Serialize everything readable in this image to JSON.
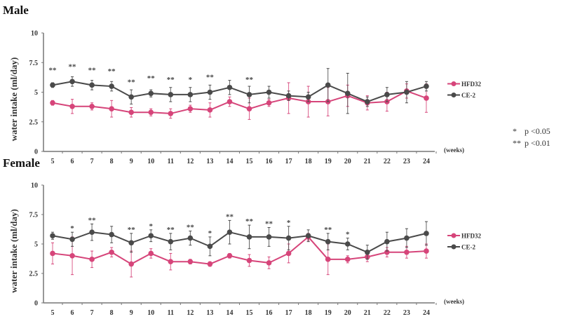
{
  "chart_data": [
    {
      "type": "line",
      "title": "Male",
      "xlabel": "(weeks)",
      "ylabel": "water intake (ml/day)",
      "ylim": [
        0,
        10
      ],
      "yticks": [
        "0",
        "2.5",
        "5",
        "7.5",
        "10"
      ],
      "x": [
        5,
        6,
        7,
        8,
        9,
        10,
        11,
        12,
        13,
        14,
        15,
        16,
        17,
        18,
        19,
        20,
        21,
        22,
        23,
        24
      ],
      "series": [
        {
          "name": "HFD32",
          "color": "#d6457a",
          "values": [
            4.1,
            3.8,
            3.8,
            3.6,
            3.3,
            3.3,
            3.2,
            3.6,
            3.5,
            4.2,
            3.6,
            4.1,
            4.5,
            4.2,
            4.2,
            4.7,
            4.1,
            4.2,
            5.1,
            4.5
          ],
          "errors": [
            0.2,
            0.6,
            0.3,
            0.7,
            0.4,
            0.3,
            0.4,
            0.3,
            0.6,
            0.4,
            0.9,
            0.3,
            1.3,
            1.3,
            1.2,
            0.9,
            0.6,
            0.8,
            0.6,
            1.2
          ]
        },
        {
          "name": "CE-2",
          "color": "#4a4a4a",
          "values": [
            5.6,
            5.9,
            5.6,
            5.5,
            4.6,
            4.9,
            4.8,
            4.8,
            5.0,
            5.4,
            4.8,
            5.0,
            4.7,
            4.6,
            5.6,
            4.9,
            4.2,
            4.8,
            5.0,
            5.5
          ],
          "errors": [
            0.2,
            0.4,
            0.4,
            0.4,
            0.6,
            0.3,
            0.6,
            0.6,
            0.6,
            0.6,
            0.7,
            0.5,
            0.4,
            0.4,
            1.4,
            1.7,
            0.4,
            0.6,
            0.9,
            0.4
          ]
        }
      ],
      "significance": [
        "**",
        "**",
        "**",
        "**",
        "**",
        "**",
        "**",
        "*",
        "**",
        "",
        "**",
        "",
        "",
        "",
        "",
        "",
        "",
        "",
        "",
        ""
      ],
      "legend_position": "right"
    },
    {
      "type": "line",
      "title": "Female",
      "xlabel": "(weeks)",
      "ylabel": "water intake (ml/day)",
      "ylim": [
        0,
        10
      ],
      "yticks": [
        "0",
        "2.5",
        "5",
        "7.5",
        "10"
      ],
      "x": [
        5,
        6,
        7,
        8,
        9,
        10,
        11,
        12,
        13,
        14,
        15,
        16,
        17,
        18,
        19,
        20,
        21,
        22,
        23,
        24
      ],
      "series": [
        {
          "name": "HFD32",
          "color": "#d6457a",
          "values": [
            4.2,
            4.0,
            3.7,
            4.3,
            3.3,
            4.2,
            3.5,
            3.5,
            3.3,
            4.0,
            3.6,
            3.4,
            4.2,
            5.6,
            3.7,
            3.7,
            3.9,
            4.3,
            4.3,
            4.4
          ],
          "errors": [
            0.9,
            1.6,
            0.7,
            0.4,
            1.1,
            0.4,
            0.7,
            0.2,
            0.2,
            0.2,
            0.5,
            0.5,
            0.8,
            0.3,
            1.3,
            0.3,
            0.4,
            0.4,
            0.5,
            0.6
          ]
        },
        {
          "name": "CE-2",
          "color": "#4a4a4a",
          "values": [
            5.7,
            5.4,
            6.0,
            5.8,
            5.1,
            5.7,
            5.2,
            5.5,
            4.8,
            6.0,
            5.6,
            5.6,
            5.5,
            5.7,
            5.2,
            5.0,
            4.3,
            5.2,
            5.5,
            5.9
          ],
          "errors": [
            0.3,
            0.6,
            0.7,
            0.7,
            0.8,
            0.5,
            0.7,
            0.6,
            0.8,
            1.0,
            1.0,
            0.8,
            1.0,
            0.5,
            0.7,
            0.5,
            0.6,
            0.8,
            0.8,
            1.0
          ]
        }
      ],
      "significance": [
        "",
        "*",
        "**",
        "",
        "**",
        "*",
        "**",
        "**",
        "*",
        "**",
        "**",
        "**",
        "*",
        "",
        "**",
        "*",
        "",
        "",
        "",
        ""
      ],
      "legend_position": "right"
    }
  ],
  "p_legend": [
    {
      "symbol": "*",
      "label": "p <0.05"
    },
    {
      "symbol": "**",
      "label": "p <0.01"
    }
  ]
}
